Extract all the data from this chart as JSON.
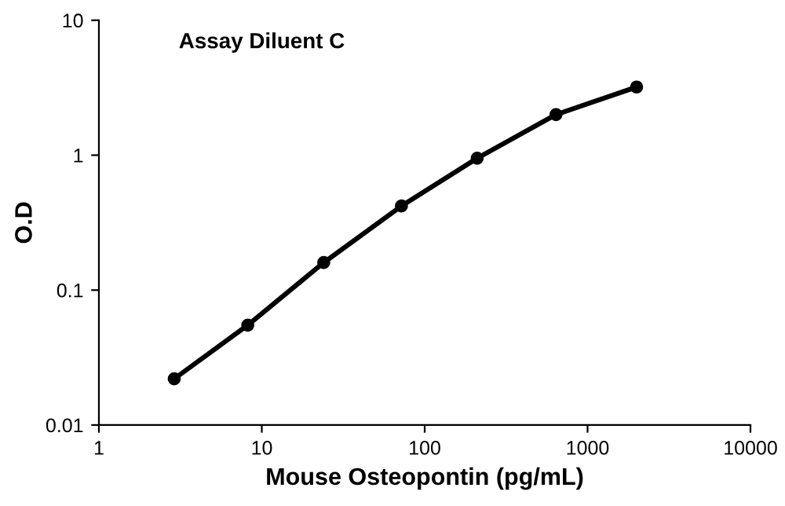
{
  "chart_data": {
    "type": "line",
    "title": "Assay Diluent C",
    "xlabel": "Mouse Osteopontin (pg/mL)",
    "ylabel": "O.D",
    "x": [
      2.9,
      8.2,
      24,
      72,
      210,
      640,
      2000
    ],
    "series": [
      {
        "color": "#000000",
        "values": [
          0.022,
          0.055,
          0.16,
          0.42,
          0.95,
          2.0,
          3.2
        ]
      }
    ],
    "log": "xy",
    "xlim": [
      1,
      10000
    ],
    "ylim": [
      0.01,
      10
    ],
    "xticks": [
      1,
      10,
      100,
      1000,
      10000
    ],
    "yticks": [
      0.01,
      0.1,
      1,
      10
    ],
    "marker": "circle",
    "line_style": "solid",
    "grid": false,
    "legend": false
  }
}
